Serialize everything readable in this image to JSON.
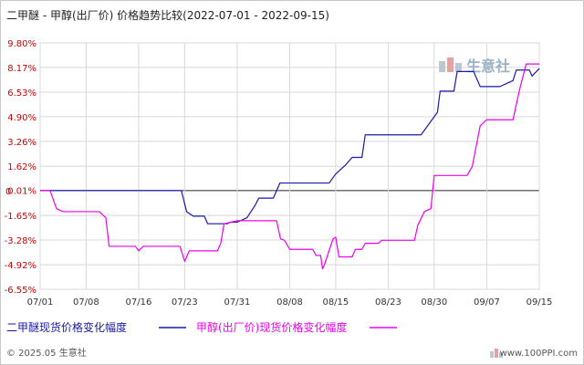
{
  "chart_data": {
    "type": "line",
    "title": "二甲醚 - 甲醇(出厂价) 价格趋势比较(2022-07-01 - 2022-09-15)",
    "y_ticks": [
      "9.80%",
      "8.17%",
      "6.53%",
      "4.90%",
      "3.26%",
      "1.62%",
      "0.01%",
      "-1.65%",
      "-3.28%",
      "-4.92%",
      "-6.55%"
    ],
    "y_tick_values": [
      9.8,
      8.17,
      6.53,
      4.9,
      3.26,
      1.62,
      0.01,
      -1.65,
      -3.28,
      -4.92,
      -6.55
    ],
    "y_zero_label": "0",
    "ylim": [
      -6.55,
      9.8
    ],
    "x_ticks": [
      "07/01",
      "07/08",
      "07/16",
      "07/23",
      "07/31",
      "08/08",
      "08/15",
      "08/23",
      "08/30",
      "09/07",
      "09/15"
    ],
    "x_tick_days": [
      0,
      7,
      15,
      22,
      30,
      38,
      45,
      53,
      60,
      68,
      76
    ],
    "xlim": [
      0,
      76
    ],
    "grid": true,
    "legend_position": "bottom",
    "series": [
      {
        "name": "二甲醚现货价格变化幅度",
        "color": "#1a1aa8",
        "points": [
          [
            0,
            0.0
          ],
          [
            21.5,
            0.0
          ],
          [
            22.3,
            -1.4
          ],
          [
            23.3,
            -1.7
          ],
          [
            25.0,
            -1.7
          ],
          [
            25.5,
            -2.2
          ],
          [
            28.5,
            -2.2
          ],
          [
            29.0,
            -2.1
          ],
          [
            30.0,
            -2.1
          ],
          [
            31.5,
            -1.8
          ],
          [
            32.7,
            -1.0
          ],
          [
            33.3,
            -0.5
          ],
          [
            35.5,
            -0.5
          ],
          [
            36.5,
            0.5
          ],
          [
            44.0,
            0.5
          ],
          [
            45.0,
            1.1
          ],
          [
            46.5,
            1.7
          ],
          [
            47.5,
            2.2
          ],
          [
            49.0,
            2.2
          ],
          [
            49.5,
            3.7
          ],
          [
            58.0,
            3.7
          ],
          [
            60.5,
            5.2
          ],
          [
            60.9,
            6.6
          ],
          [
            63.0,
            6.6
          ],
          [
            63.5,
            7.9
          ],
          [
            66.0,
            7.9
          ],
          [
            67.0,
            6.9
          ],
          [
            70.0,
            6.9
          ],
          [
            71.0,
            7.1
          ],
          [
            72.0,
            7.3
          ],
          [
            72.5,
            8.0
          ],
          [
            74.5,
            8.0
          ],
          [
            74.9,
            7.6
          ],
          [
            76.0,
            8.1
          ]
        ]
      },
      {
        "name": "甲醇(出厂价)现货价格变化幅度",
        "color": "#ee00ee",
        "points": [
          [
            0,
            0.0
          ],
          [
            1.5,
            0.0
          ],
          [
            2.5,
            -1.2
          ],
          [
            3.5,
            -1.4
          ],
          [
            9.0,
            -1.4
          ],
          [
            10.0,
            -1.8
          ],
          [
            10.5,
            -3.7
          ],
          [
            14.5,
            -3.7
          ],
          [
            15.0,
            -4.0
          ],
          [
            15.7,
            -3.7
          ],
          [
            21.3,
            -3.7
          ],
          [
            22.0,
            -4.7
          ],
          [
            22.7,
            -4.0
          ],
          [
            27.0,
            -4.0
          ],
          [
            27.5,
            -3.5
          ],
          [
            28.0,
            -2.2
          ],
          [
            30.0,
            -2.0
          ],
          [
            36.0,
            -2.0
          ],
          [
            36.6,
            -3.2
          ],
          [
            37.2,
            -3.3
          ],
          [
            38.0,
            -3.9
          ],
          [
            41.5,
            -3.9
          ],
          [
            42.0,
            -4.3
          ],
          [
            42.7,
            -4.3
          ],
          [
            43.0,
            -5.2
          ],
          [
            43.3,
            -4.9
          ],
          [
            44.6,
            -3.2
          ],
          [
            45.0,
            -3.1
          ],
          [
            45.5,
            -4.4
          ],
          [
            47.5,
            -4.4
          ],
          [
            48.0,
            -3.9
          ],
          [
            49.0,
            -3.9
          ],
          [
            49.5,
            -3.5
          ],
          [
            51.5,
            -3.5
          ],
          [
            52.0,
            -3.3
          ],
          [
            57.0,
            -3.3
          ],
          [
            57.5,
            -2.3
          ],
          [
            58.5,
            -1.4
          ],
          [
            59.5,
            -1.2
          ],
          [
            60.0,
            1.0
          ],
          [
            65.0,
            1.0
          ],
          [
            65.8,
            1.6
          ],
          [
            67.0,
            4.3
          ],
          [
            68.0,
            4.7
          ],
          [
            72.0,
            4.7
          ],
          [
            73.0,
            6.7
          ],
          [
            74.0,
            8.4
          ],
          [
            76.0,
            8.4
          ]
        ]
      }
    ]
  },
  "watermark": {
    "text": "生意社"
  },
  "footer": {
    "left": "© 2025.05 生意社",
    "right": "www.100PPI.com"
  }
}
